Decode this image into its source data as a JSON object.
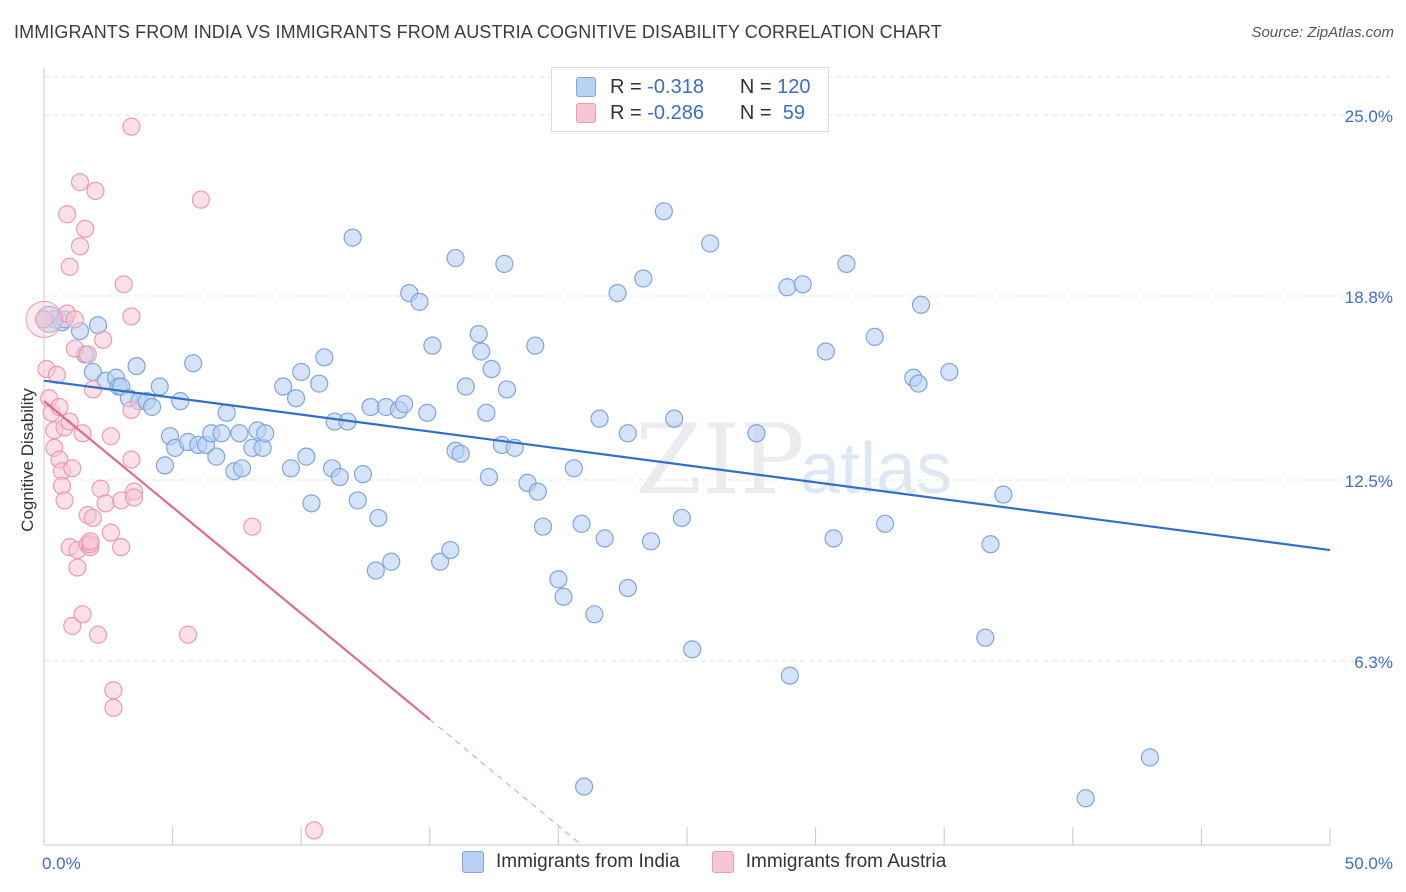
{
  "header": {
    "title": "IMMIGRANTS FROM INDIA VS IMMIGRANTS FROM AUSTRIA COGNITIVE DISABILITY CORRELATION CHART",
    "source": "Source: ZipAtlas.com"
  },
  "stats_legend": {
    "rows": [
      {
        "r_label": "R =",
        "r_value": "-0.318",
        "n_label": "N =",
        "n_value": "120"
      },
      {
        "r_label": "R =",
        "r_value": "-0.286",
        "n_label": "N =",
        "n_value": " 59"
      }
    ]
  },
  "colors": {
    "india_fill": "#b9d1f3",
    "india_stroke": "#7fa6dd",
    "india_line": "#2f6fcc",
    "austria_fill": "#f7c6d4",
    "austria_stroke": "#ee9ab3",
    "austria_line": "#e06a93",
    "axis_text": "#3a6fc4",
    "grid": "#e3e3e3"
  },
  "chart_data": {
    "type": "scatter",
    "title": "IMMIGRANTS FROM INDIA VS IMMIGRANTS FROM AUSTRIA COGNITIVE DISABILITY CORRELATION CHART",
    "xlabel": "",
    "ylabel": "Cognitive Disability",
    "xlim": [
      0,
      50
    ],
    "ylim": [
      0,
      26.3
    ],
    "x_tick_labels": [
      "0.0%",
      "50.0%"
    ],
    "y_ticks": [
      6.3,
      12.5,
      18.8,
      25.0
    ],
    "y_tick_labels": [
      "6.3%",
      "12.5%",
      "18.8%",
      "25.0%"
    ],
    "grid": "horizontal dashed",
    "legend_position": "bottom",
    "watermark": "ZIPatlas",
    "series": [
      {
        "name": "Immigrants from India",
        "trend": {
          "x": [
            0,
            50
          ],
          "y": [
            15.9,
            10.1
          ]
        },
        "points": [
          [
            0.0,
            18.0
          ],
          [
            0.4,
            18.0
          ],
          [
            0.7,
            17.9
          ],
          [
            0.8,
            18.0
          ],
          [
            1.4,
            17.6
          ],
          [
            1.6,
            16.8
          ],
          [
            2.1,
            17.8
          ],
          [
            1.9,
            16.2
          ],
          [
            2.4,
            15.9
          ],
          [
            2.8,
            16.0
          ],
          [
            2.9,
            15.7
          ],
          [
            3.0,
            15.7
          ],
          [
            3.3,
            15.3
          ],
          [
            3.7,
            15.2
          ],
          [
            3.6,
            16.4
          ],
          [
            4.0,
            15.2
          ],
          [
            4.2,
            15.0
          ],
          [
            4.5,
            15.7
          ],
          [
            4.7,
            13.0
          ],
          [
            4.9,
            14.0
          ],
          [
            5.1,
            13.6
          ],
          [
            5.3,
            15.2
          ],
          [
            5.6,
            13.8
          ],
          [
            5.8,
            16.5
          ],
          [
            6.0,
            13.7
          ],
          [
            6.3,
            13.7
          ],
          [
            6.5,
            14.1
          ],
          [
            6.7,
            13.3
          ],
          [
            6.9,
            14.1
          ],
          [
            7.1,
            14.8
          ],
          [
            7.4,
            12.8
          ],
          [
            7.6,
            14.1
          ],
          [
            7.7,
            12.9
          ],
          [
            8.1,
            13.6
          ],
          [
            8.3,
            14.2
          ],
          [
            8.5,
            13.6
          ],
          [
            8.6,
            14.1
          ],
          [
            9.3,
            15.7
          ],
          [
            9.6,
            12.9
          ],
          [
            9.8,
            15.3
          ],
          [
            10.0,
            16.2
          ],
          [
            10.2,
            13.3
          ],
          [
            10.4,
            11.7
          ],
          [
            10.7,
            15.8
          ],
          [
            10.9,
            16.7
          ],
          [
            11.2,
            12.9
          ],
          [
            11.3,
            14.5
          ],
          [
            11.5,
            12.6
          ],
          [
            11.8,
            14.5
          ],
          [
            12.0,
            20.8
          ],
          [
            12.2,
            11.8
          ],
          [
            12.4,
            12.7
          ],
          [
            12.7,
            15.0
          ],
          [
            12.9,
            9.4
          ],
          [
            13.0,
            11.2
          ],
          [
            13.3,
            15.0
          ],
          [
            13.5,
            9.7
          ],
          [
            13.8,
            14.9
          ],
          [
            14.0,
            15.1
          ],
          [
            14.2,
            18.9
          ],
          [
            14.6,
            18.6
          ],
          [
            14.9,
            14.8
          ],
          [
            15.1,
            17.1
          ],
          [
            15.4,
            9.7
          ],
          [
            15.8,
            10.1
          ],
          [
            16.0,
            13.5
          ],
          [
            16.0,
            20.1
          ],
          [
            16.2,
            13.4
          ],
          [
            16.4,
            15.7
          ],
          [
            16.9,
            17.5
          ],
          [
            17.0,
            16.9
          ],
          [
            17.2,
            14.8
          ],
          [
            17.3,
            12.6
          ],
          [
            17.4,
            16.3
          ],
          [
            17.8,
            13.7
          ],
          [
            17.9,
            19.9
          ],
          [
            18.0,
            15.6
          ],
          [
            18.3,
            13.6
          ],
          [
            18.8,
            12.4
          ],
          [
            19.1,
            17.1
          ],
          [
            19.2,
            12.1
          ],
          [
            19.4,
            10.9
          ],
          [
            20.0,
            9.1
          ],
          [
            20.2,
            8.5
          ],
          [
            20.6,
            12.9
          ],
          [
            20.9,
            11.0
          ],
          [
            21.0,
            2.0
          ],
          [
            21.4,
            7.9
          ],
          [
            21.6,
            14.6
          ],
          [
            21.8,
            10.5
          ],
          [
            22.3,
            18.9
          ],
          [
            22.7,
            14.1
          ],
          [
            22.7,
            8.8
          ],
          [
            23.3,
            19.4
          ],
          [
            23.6,
            10.4
          ],
          [
            24.1,
            21.7
          ],
          [
            24.5,
            14.6
          ],
          [
            24.8,
            11.2
          ],
          [
            25.2,
            6.7
          ],
          [
            25.9,
            20.6
          ],
          [
            27.7,
            14.1
          ],
          [
            28.9,
            19.1
          ],
          [
            29.0,
            5.8
          ],
          [
            29.5,
            19.2
          ],
          [
            30.4,
            16.9
          ],
          [
            30.7,
            10.5
          ],
          [
            31.2,
            19.9
          ],
          [
            32.3,
            17.4
          ],
          [
            32.7,
            11.0
          ],
          [
            33.8,
            16.0
          ],
          [
            34.0,
            15.8
          ],
          [
            34.1,
            18.5
          ],
          [
            35.2,
            16.2
          ],
          [
            36.6,
            7.1
          ],
          [
            36.8,
            10.3
          ],
          [
            37.3,
            12.0
          ],
          [
            40.5,
            1.6
          ],
          [
            43.0,
            3.0
          ]
        ]
      },
      {
        "name": "Immigrants from Austria",
        "trend": {
          "x": [
            0,
            15
          ],
          "y": [
            15.2,
            4.3
          ]
        },
        "trend_dashed": {
          "x": [
            15,
            20.9
          ],
          "y": [
            4.3,
            0.0
          ]
        },
        "points": [
          [
            0.0,
            18.0
          ],
          [
            0.1,
            16.3
          ],
          [
            0.2,
            15.3
          ],
          [
            0.3,
            14.8
          ],
          [
            0.4,
            14.2
          ],
          [
            0.4,
            13.6
          ],
          [
            0.5,
            16.1
          ],
          [
            0.6,
            15.0
          ],
          [
            0.6,
            13.2
          ],
          [
            0.7,
            12.8
          ],
          [
            0.7,
            12.3
          ],
          [
            0.8,
            14.3
          ],
          [
            0.8,
            11.8
          ],
          [
            0.9,
            21.6
          ],
          [
            0.9,
            18.2
          ],
          [
            1.0,
            14.5
          ],
          [
            1.0,
            19.8
          ],
          [
            1.0,
            10.2
          ],
          [
            1.1,
            12.9
          ],
          [
            1.1,
            7.5
          ],
          [
            1.2,
            17.0
          ],
          [
            1.2,
            18.0
          ],
          [
            1.3,
            10.1
          ],
          [
            1.3,
            9.5
          ],
          [
            1.4,
            22.7
          ],
          [
            1.4,
            20.5
          ],
          [
            1.5,
            14.1
          ],
          [
            1.5,
            7.9
          ],
          [
            1.6,
            21.1
          ],
          [
            1.7,
            16.8
          ],
          [
            1.7,
            11.3
          ],
          [
            1.7,
            10.3
          ],
          [
            1.8,
            10.2
          ],
          [
            1.8,
            10.3
          ],
          [
            1.8,
            10.4
          ],
          [
            1.9,
            11.2
          ],
          [
            1.9,
            15.6
          ],
          [
            2.0,
            22.4
          ],
          [
            2.1,
            7.2
          ],
          [
            2.2,
            12.2
          ],
          [
            2.3,
            17.3
          ],
          [
            2.4,
            11.7
          ],
          [
            2.6,
            14.0
          ],
          [
            2.6,
            10.7
          ],
          [
            2.7,
            5.3
          ],
          [
            2.7,
            4.7
          ],
          [
            3.0,
            11.8
          ],
          [
            3.0,
            10.2
          ],
          [
            3.1,
            19.2
          ],
          [
            3.4,
            18.1
          ],
          [
            3.4,
            13.2
          ],
          [
            3.4,
            14.9
          ],
          [
            3.5,
            12.1
          ],
          [
            3.5,
            11.9
          ],
          [
            3.4,
            24.6
          ],
          [
            5.6,
            7.2
          ],
          [
            6.1,
            22.1
          ],
          [
            8.1,
            10.9
          ],
          [
            10.5,
            0.5
          ]
        ]
      }
    ]
  }
}
